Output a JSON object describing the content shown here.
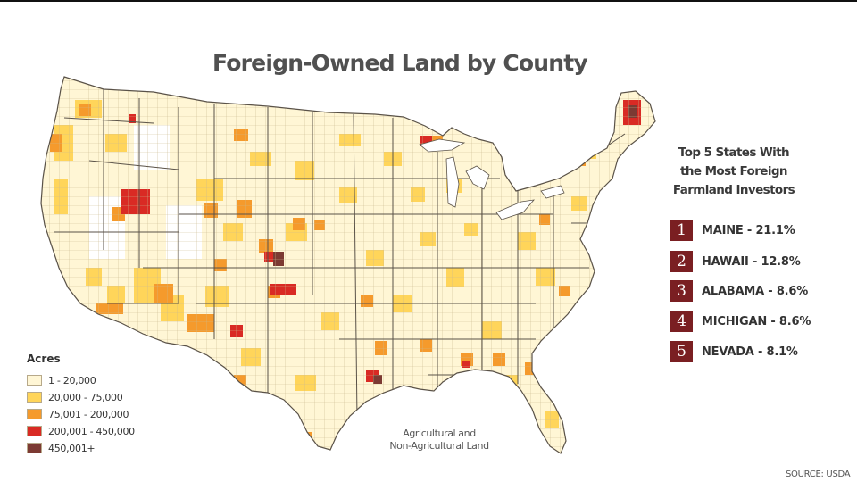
{
  "title": "Foreign-Owned Land by County",
  "map_note": [
    "Agricultural and",
    "Non-Agricultural Land"
  ],
  "legend": {
    "title": "Acres",
    "items": [
      {
        "label": "1 - 20,000",
        "color": "#fff6d5"
      },
      {
        "label": "20,000 - 75,000",
        "color": "#ffd55a"
      },
      {
        "label": "75,001 - 200,000",
        "color": "#f59a2c"
      },
      {
        "label": "200,001 - 450,000",
        "color": "#d92a24"
      },
      {
        "label": "450,001+",
        "color": "#7c3a33"
      }
    ]
  },
  "top5": {
    "heading": [
      "Top 5 States With",
      "the Most Foreign",
      "Farmland Investors"
    ],
    "items": [
      {
        "rank": "1",
        "label": "MAINE  - 21.1%"
      },
      {
        "rank": "2",
        "label": "HAWAII - 12.8%"
      },
      {
        "rank": "3",
        "label": "ALABAMA - 8.6%"
      },
      {
        "rank": "4",
        "label": "MICHIGAN - 8.6%"
      },
      {
        "rank": "5",
        "label": "NEVADA - 8.1%"
      }
    ]
  },
  "source": "SOURCE: USDA",
  "colors": {
    "accent": "#7a1f22",
    "land_base": "#fff6d5",
    "county_border": "#c9b98f",
    "state_border": "#5a5248"
  }
}
